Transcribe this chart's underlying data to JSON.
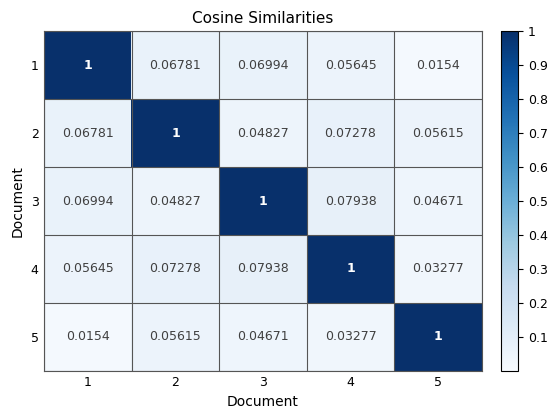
{
  "title": "Cosine Similarities",
  "xlabel": "Document",
  "ylabel": "Document",
  "matrix": [
    [
      1.0,
      0.06781,
      0.06994,
      0.05645,
      0.0154
    ],
    [
      0.06781,
      1.0,
      0.04827,
      0.07278,
      0.05615
    ],
    [
      0.06994,
      0.04827,
      1.0,
      0.07938,
      0.04671
    ],
    [
      0.05645,
      0.07278,
      0.07938,
      1.0,
      0.03277
    ],
    [
      0.0154,
      0.05615,
      0.04671,
      0.03277,
      1.0
    ]
  ],
  "tick_labels": [
    "1",
    "2",
    "3",
    "4",
    "5"
  ],
  "vmin": 0,
  "vmax": 1,
  "cmap": "Blues",
  "cell_text_color_dark": "#404040",
  "cell_text_color_light": "white",
  "colorbar_ticks": [
    0.1,
    0.2,
    0.3,
    0.4,
    0.5,
    0.6,
    0.7,
    0.8,
    0.9,
    1.0
  ],
  "title_fontsize": 11,
  "axis_label_fontsize": 10,
  "tick_fontsize": 9,
  "cell_fontsize": 9,
  "cell_text_threshold": 0.5,
  "background_color": "#ffffff",
  "grid_color": "#555555",
  "grid_linewidth": 0.8
}
